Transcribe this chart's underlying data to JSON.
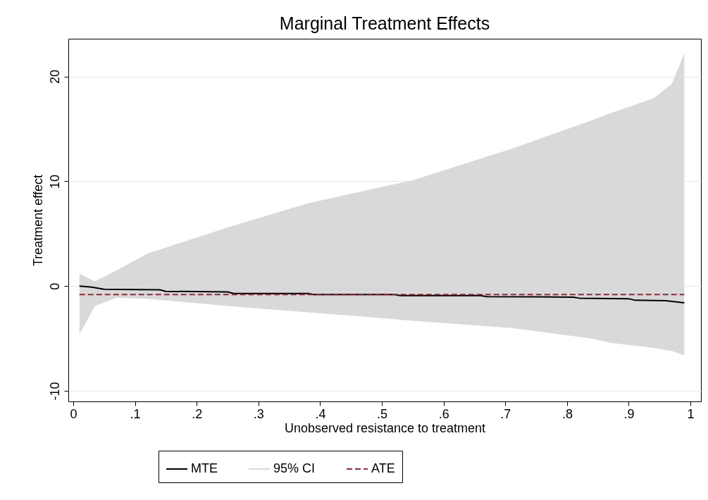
{
  "chart_data": {
    "type": "line",
    "title": "Marginal Treatment Effects",
    "xlabel": "Unobserved resistance to treatment",
    "ylabel": "Treatment effect",
    "xlim": [
      -0.008,
      1.017
    ],
    "ylim": [
      -11,
      23.6
    ],
    "xticks": [
      0,
      {
        "value": 0.1,
        "label": ".1"
      },
      {
        "value": 0.2,
        "label": ".2"
      },
      {
        "value": 0.3,
        "label": ".3"
      },
      {
        "value": 0.4,
        "label": ".4"
      },
      {
        "value": 0.5,
        "label": ".5"
      },
      {
        "value": 0.6,
        "label": ".6"
      },
      {
        "value": 0.7,
        "label": ".7"
      },
      {
        "value": 0.8,
        "label": ".8"
      },
      {
        "value": 0.9,
        "label": ".9"
      },
      1
    ],
    "yticks": [
      -10,
      0,
      10,
      20
    ],
    "grid": "y",
    "legend": "bottom",
    "series": [
      {
        "name": "MTE",
        "color": "#000000",
        "line_style": "solid",
        "x": [
          0.01,
          0.03,
          0.05,
          0.14,
          0.15,
          0.25,
          0.26,
          0.38,
          0.39,
          0.52,
          0.53,
          0.66,
          0.67,
          0.81,
          0.82,
          0.9,
          0.91,
          0.96,
          0.99
        ],
        "values": [
          0,
          -0.1,
          -0.3,
          -0.35,
          -0.5,
          -0.55,
          -0.7,
          -0.7,
          -0.8,
          -0.8,
          -0.9,
          -0.9,
          -1.0,
          -1.05,
          -1.15,
          -1.2,
          -1.35,
          -1.4,
          -1.6
        ]
      },
      {
        "name": "95% CI",
        "type": "area",
        "color": "#d9d9d9",
        "x": [
          0.01,
          0.035,
          0.07,
          0.12,
          0.25,
          0.38,
          0.51,
          0.55,
          0.71,
          0.84,
          0.87,
          0.94,
          0.97,
          0.99
        ],
        "lower": [
          -4.6,
          -1.9,
          -1.1,
          -1.2,
          -1.9,
          -2.5,
          -3.1,
          -3.3,
          -4.0,
          -5.0,
          -5.4,
          -5.9,
          -6.2,
          -6.6
        ],
        "upper": [
          1.2,
          0.45,
          1.5,
          3.1,
          5.6,
          7.9,
          9.6,
          10.1,
          13.1,
          15.8,
          16.5,
          17.9,
          19.3,
          22.2
        ],
        "values": [
          null,
          null,
          null,
          null,
          null,
          null,
          null,
          null,
          null,
          null,
          null,
          null,
          null,
          null
        ]
      },
      {
        "name": "ATE",
        "type": "line",
        "color": "#8b2a3a",
        "line_style": "dashed",
        "x": [
          0.01,
          0.99
        ],
        "values": [
          -0.8,
          -0.8
        ]
      }
    ]
  }
}
